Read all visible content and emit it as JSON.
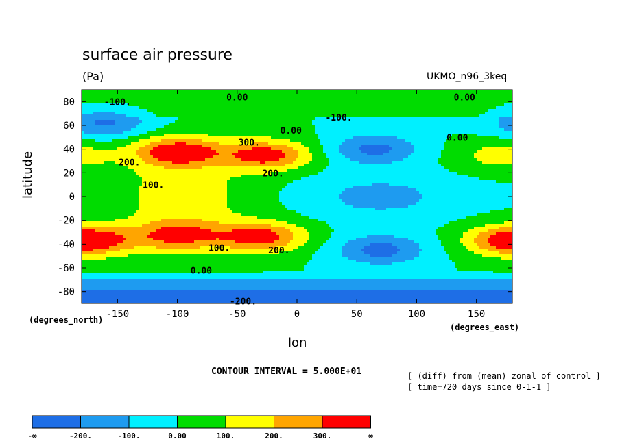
{
  "chart_data": {
    "type": "contour",
    "title": "surface air pressure",
    "units": "(Pa)",
    "model": "UKMO_n96_3keq",
    "xlabel": "lon",
    "ylabel": "latitude",
    "x_units": "(degrees_east)",
    "y_units": "(degrees_north)",
    "xlim": [
      -180,
      180
    ],
    "ylim": [
      -90,
      90
    ],
    "x_ticks": [
      -150,
      -100,
      -50,
      0,
      50,
      100,
      150
    ],
    "y_ticks": [
      -80,
      -60,
      -40,
      -20,
      0,
      20,
      40,
      60,
      80
    ],
    "contour_interval": "CONTOUR INTERVAL = 5.000E+01",
    "notes": [
      "[ (diff) from (mean) zonal of control ]",
      "[ time=720 days since 0-1-1 ]"
    ],
    "levels": [
      {
        "label": "-∞",
        "color": "#1e6ee6"
      },
      {
        "label": "-200.",
        "color": "#1e9bf0"
      },
      {
        "label": "-100.",
        "color": "#00f0ff"
      },
      {
        "label": "0.00",
        "color": "#00dc00"
      },
      {
        "label": "100.",
        "color": "#ffff00"
      },
      {
        "label": "200.",
        "color": "#ffa500"
      },
      {
        "label": "300.",
        "color": "#ff0000"
      },
      {
        "label": "∞",
        "color": ""
      }
    ],
    "contour_labels": [
      {
        "text": "0.00",
        "lon": -50,
        "lat": 84
      },
      {
        "text": "0.00",
        "lon": 140,
        "lat": 84
      },
      {
        "text": "-100.",
        "lon": -150,
        "lat": 80
      },
      {
        "text": "-100.",
        "lon": 35,
        "lat": 67
      },
      {
        "text": "0.00",
        "lon": -5,
        "lat": 56
      },
      {
        "text": "0.00",
        "lon": 134,
        "lat": 50
      },
      {
        "text": "300.",
        "lon": -40,
        "lat": 46
      },
      {
        "text": "200.",
        "lon": -140,
        "lat": 29
      },
      {
        "text": "200.",
        "lon": -20,
        "lat": 20
      },
      {
        "text": "100.",
        "lon": -120,
        "lat": 10
      },
      {
        "text": "100.",
        "lon": -65,
        "lat": -43
      },
      {
        "text": "200.",
        "lon": -15,
        "lat": -45
      },
      {
        "text": "0.00",
        "lon": -80,
        "lat": -62
      },
      {
        "text": "-200.",
        "lon": -45,
        "lat": -88
      }
    ],
    "features": [
      {
        "lon": -100,
        "lat": 38,
        "value": 350
      },
      {
        "lon": -25,
        "lat": 35,
        "value": 350
      },
      {
        "lon": -30,
        "lat": -34,
        "value": 350
      },
      {
        "lon": -100,
        "lat": -33,
        "value": 280
      },
      {
        "lon": -170,
        "lat": -37,
        "value": 230
      },
      {
        "lon": 175,
        "lat": -37,
        "value": 230
      },
      {
        "lon": 170,
        "lat": 35,
        "value": 150
      },
      {
        "lon": 65,
        "lat": 40,
        "value": -230
      },
      {
        "lon": 70,
        "lat": -45,
        "value": -240
      },
      {
        "lon": -160,
        "lat": 62,
        "value": -220
      }
    ]
  }
}
